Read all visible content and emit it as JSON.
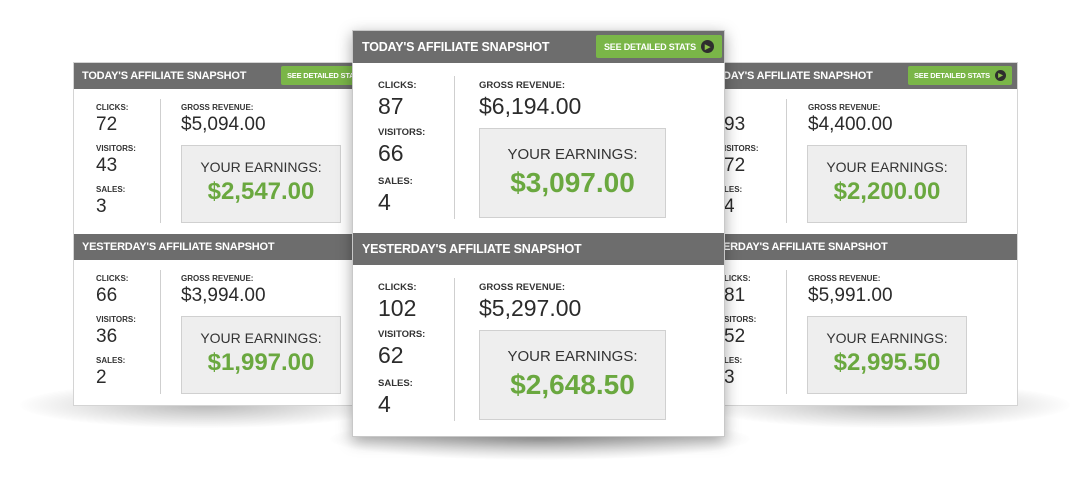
{
  "widgets": {
    "left": {
      "today": {
        "title": "TODAY'S AFFILIATE SNAPSHOT",
        "button_label": "SEE DETAILED STATS",
        "clicks_label": "CLICKS:",
        "clicks": "72",
        "visitors_label": "VISITORS:",
        "visitors": "43",
        "sales_label": "SALES:",
        "sales": "3",
        "gross_label": "GROSS REVENUE:",
        "gross": "$5,094.00",
        "earnings_label": "YOUR EARNINGS:",
        "earnings": "$2,547.00"
      },
      "yesterday": {
        "title": "YESTERDAY'S AFFILIATE SNAPSHOT",
        "clicks_label": "CLICKS:",
        "clicks": "66",
        "visitors_label": "VISITORS:",
        "visitors": "36",
        "sales_label": "SALES:",
        "sales": "2",
        "gross_label": "GROSS REVENUE:",
        "gross": "$3,994.00",
        "earnings_label": "YOUR EARNINGS:",
        "earnings": "$1,997.00"
      }
    },
    "center": {
      "today": {
        "title": "TODAY'S AFFILIATE SNAPSHOT",
        "button_label": "SEE DETAILED STATS",
        "clicks_label": "CLICKS:",
        "clicks": "87",
        "visitors_label": "VISITORS:",
        "visitors": "66",
        "sales_label": "SALES:",
        "sales": "4",
        "gross_label": "GROSS REVENUE:",
        "gross": "$6,194.00",
        "earnings_label": "YOUR EARNINGS:",
        "earnings": "$3,097.00"
      },
      "yesterday": {
        "title": "YESTERDAY'S AFFILIATE SNAPSHOT",
        "clicks_label": "CLICKS:",
        "clicks": "102",
        "visitors_label": "VISITORS:",
        "visitors": "62",
        "sales_label": "SALES:",
        "sales": "4",
        "gross_label": "GROSS REVENUE:",
        "gross": "$5,297.00",
        "earnings_label": "YOUR EARNINGS:",
        "earnings": "$2,648.50"
      }
    },
    "right": {
      "today": {
        "title": "DAY'S AFFILIATE SNAPSHOT",
        "button_label": "SEE DETAILED STATS",
        "clicks_label": "",
        "clicks": "93",
        "visitors_label": "ISITORS:",
        "visitors": "72",
        "sales_label": "LES:",
        "sales": "4",
        "gross_label": "GROSS REVENUE:",
        "gross": "$4,400.00",
        "earnings_label": "YOUR EARNINGS:",
        "earnings": "$2,200.00"
      },
      "yesterday": {
        "title": "ERDAY'S AFFILIATE SNAPSHOT",
        "clicks_label": "LICKS:",
        "clicks": "81",
        "visitors_label": "SITORS:",
        "visitors": "52",
        "sales_label": "LES:",
        "sales": "3",
        "gross_label": "GROSS REVENUE:",
        "gross": "$5,991.00",
        "earnings_label": "YOUR EARNINGS:",
        "earnings": "$2,995.50"
      }
    }
  },
  "colors": {
    "header_bg": "#6d6d6d",
    "button_green": "#7ab648",
    "earnings_green": "#6aa83f",
    "earnings_box_bg": "#eeeeee"
  },
  "icons": {
    "button_icon": "play-circle-icon"
  }
}
